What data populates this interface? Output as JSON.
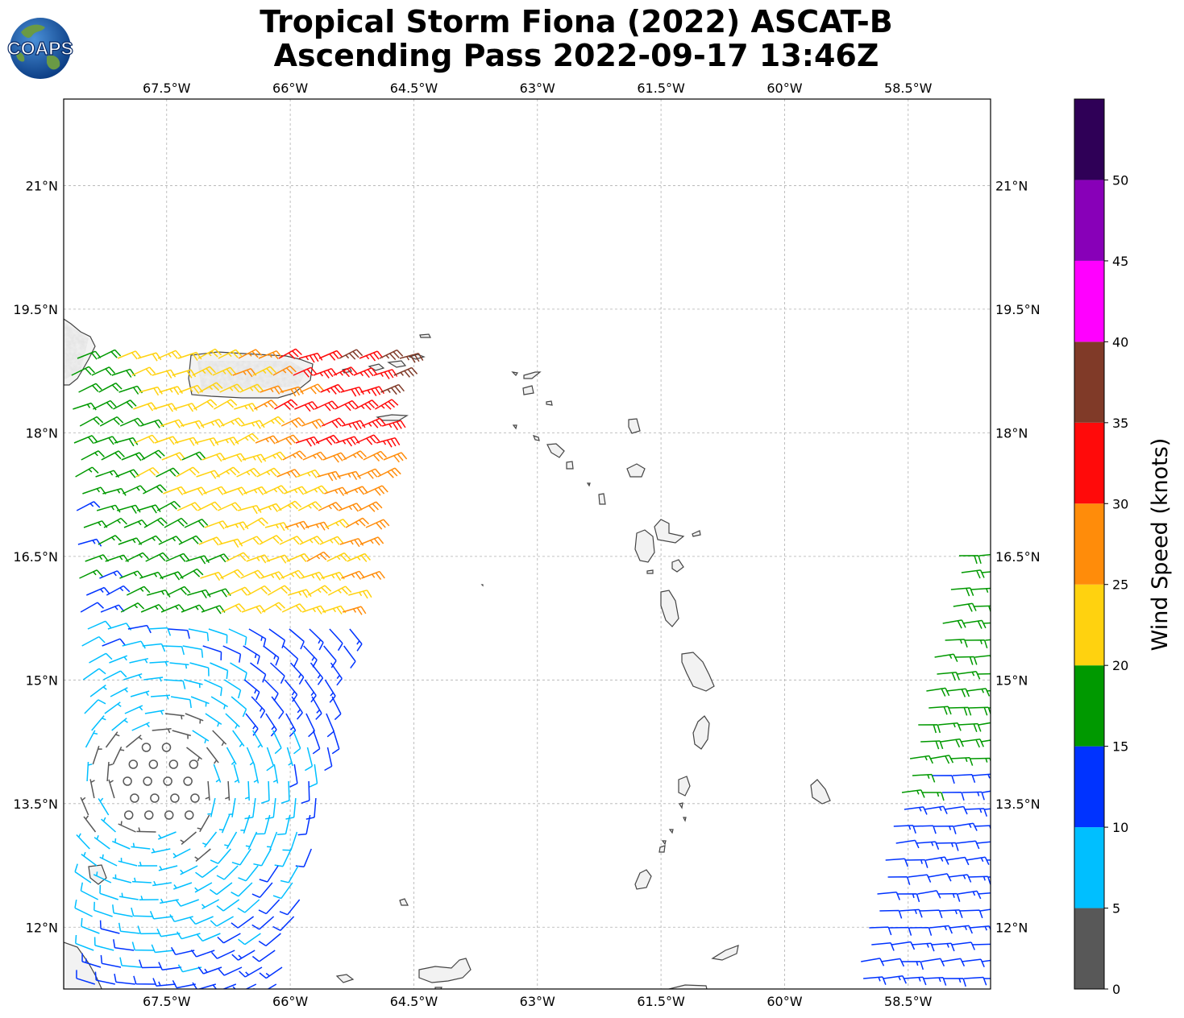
{
  "title": {
    "line1": "Tropical Storm Fiona (2022) ASCAT-B",
    "line2": "Ascending Pass 2022-09-17 13:46Z"
  },
  "logo": {
    "text": "COAPS",
    "ocean_color": "#1a5aa8",
    "land_color": "#5a8a3a"
  },
  "map": {
    "lon_range": [
      -69,
      -61.5,
      -58.5,
      -57.5
    ],
    "lon_min": -68.75,
    "lon_max": -57.5,
    "lat_min": 11.25,
    "lat_max": 22.05,
    "lon_ticks": [
      -67.5,
      -66,
      -64.5,
      -63,
      -61.5,
      -60,
      -58.5
    ],
    "lon_tick_labels": [
      "67.5°W",
      "66°W",
      "64.5°W",
      "63°W",
      "61.5°W",
      "60°W",
      "58.5°W"
    ],
    "lat_ticks": [
      12,
      13.5,
      15,
      16.5,
      18,
      19.5,
      21
    ],
    "lat_tick_labels": [
      "12°N",
      "13.5°N",
      "15°N",
      "16.5°N",
      "18°N",
      "19.5°N",
      "21°N"
    ],
    "gridlines": true
  },
  "colorbar": {
    "label": "Wind Speed (knots)",
    "levels": [
      0,
      5,
      10,
      15,
      20,
      25,
      30,
      35,
      40,
      45,
      50,
      55
    ],
    "tick_values": [
      0,
      5,
      10,
      15,
      20,
      25,
      30,
      35,
      40,
      45,
      50
    ],
    "tick_labels": [
      "0",
      "5",
      "10",
      "15",
      "20",
      "25",
      "30",
      "35",
      "40",
      "45",
      "50"
    ],
    "colors": [
      "#585858",
      "#00bfff",
      "#0033ff",
      "#009900",
      "#ffd20f",
      "#ff8c0a",
      "#ff0a0a",
      "#803a28",
      "#ff00ff",
      "#8800b8",
      "#2f0057"
    ]
  }
}
